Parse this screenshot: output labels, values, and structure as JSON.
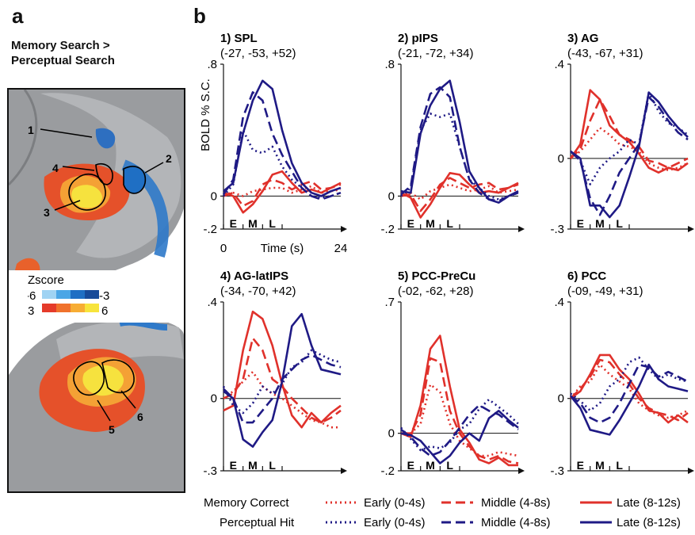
{
  "figure": {
    "panel_a_label": "a",
    "panel_b_label": "b",
    "contrast_line1": "Memory Search >",
    "contrast_line2": "Perceptual Search",
    "zscore": {
      "title": "Zscore",
      "neg_min": "-6",
      "neg_max": "-3",
      "pos_min": "3",
      "pos_max": "6",
      "neg_colors": [
        "#9fd3f3",
        "#4aa6e6",
        "#1f6fc4",
        "#174a99"
      ],
      "pos_colors": [
        "#e53b2a",
        "#f0722c",
        "#f7ad34",
        "#f7e43c"
      ]
    },
    "roi_labels": [
      "1",
      "2",
      "3",
      "4",
      "5",
      "6"
    ],
    "legend": {
      "row1_label": "Memory Correct",
      "row2_label": "Perceptual Hit",
      "early": "Early (0-4s)",
      "middle": "Middle (4-8s)",
      "late": "Late (8-12s)"
    },
    "colors": {
      "memory": "#e0312b",
      "perceptual": "#1f1a85"
    }
  },
  "chart_data": [
    {
      "type": "line",
      "title": "1) SPL",
      "coords": "(-27, -53, +52)",
      "ylabel": "BOLD % S.C.",
      "xlabel": "Time (s)",
      "x_tick_labels": [
        "0",
        "24"
      ],
      "ylim": [
        -0.2,
        0.8
      ],
      "y_tick_labels": [
        ".8",
        "0",
        "-.2"
      ],
      "period_labels": [
        "E",
        "M",
        "L"
      ],
      "x": [
        0,
        2,
        4,
        6,
        8,
        10,
        12,
        14,
        16,
        18,
        20,
        22,
        24
      ],
      "series": [
        {
          "group": "memory",
          "window": "early",
          "values": [
            0.01,
            0.02,
            0.0,
            0.03,
            0.04,
            0.05,
            0.05,
            0.02,
            0.04,
            0.06,
            0.02,
            0.03,
            0.04
          ]
        },
        {
          "group": "memory",
          "window": "middle",
          "values": [
            0.0,
            0.02,
            -0.06,
            -0.03,
            0.07,
            0.1,
            0.08,
            0.04,
            0.07,
            0.09,
            0.04,
            0.05,
            0.07
          ]
        },
        {
          "group": "memory",
          "window": "late",
          "values": [
            0.02,
            0.0,
            -0.1,
            -0.05,
            0.03,
            0.13,
            0.15,
            0.08,
            0.02,
            0.04,
            0.02,
            0.05,
            0.08
          ]
        },
        {
          "group": "perceptual",
          "window": "early",
          "values": [
            0.0,
            0.07,
            0.4,
            0.28,
            0.26,
            0.3,
            0.18,
            0.1,
            0.05,
            0.0,
            -0.01,
            0.0,
            0.02
          ]
        },
        {
          "group": "perceptual",
          "window": "middle",
          "values": [
            0.01,
            0.1,
            0.48,
            0.63,
            0.58,
            0.38,
            0.25,
            0.15,
            0.05,
            0.0,
            -0.02,
            0.0,
            0.02
          ]
        },
        {
          "group": "perceptual",
          "window": "late",
          "values": [
            0.03,
            0.08,
            0.38,
            0.58,
            0.7,
            0.65,
            0.4,
            0.2,
            0.08,
            0.02,
            0.0,
            0.03,
            0.05
          ]
        }
      ]
    },
    {
      "type": "line",
      "title": "2) pIPS",
      "coords": "(-21, -72, +34)",
      "ylim": [
        -0.2,
        0.8
      ],
      "y_tick_labels": [
        ".8",
        "0",
        "-.2"
      ],
      "period_labels": [
        "E",
        "M",
        "L"
      ],
      "x": [
        0,
        2,
        4,
        6,
        8,
        10,
        12,
        14,
        16,
        18,
        20,
        22,
        24
      ],
      "series": [
        {
          "group": "memory",
          "window": "early",
          "values": [
            0.01,
            0.02,
            -0.02,
            0.03,
            0.05,
            0.07,
            0.05,
            0.03,
            0.04,
            0.06,
            0.02,
            0.03,
            0.04
          ]
        },
        {
          "group": "memory",
          "window": "middle",
          "values": [
            0.0,
            0.01,
            -0.09,
            -0.02,
            0.07,
            0.11,
            0.08,
            0.05,
            0.07,
            0.08,
            0.04,
            0.05,
            0.07
          ]
        },
        {
          "group": "memory",
          "window": "late",
          "values": [
            0.02,
            -0.01,
            -0.13,
            -0.05,
            0.05,
            0.14,
            0.13,
            0.07,
            0.02,
            0.03,
            0.02,
            0.05,
            0.08
          ]
        },
        {
          "group": "perceptual",
          "window": "early",
          "values": [
            0.0,
            0.05,
            0.4,
            0.5,
            0.48,
            0.5,
            0.3,
            0.1,
            0.05,
            0.0,
            -0.02,
            0.0,
            0.02
          ]
        },
        {
          "group": "perceptual",
          "window": "middle",
          "values": [
            0.01,
            0.06,
            0.42,
            0.62,
            0.66,
            0.6,
            0.3,
            0.1,
            0.02,
            -0.02,
            -0.03,
            0.0,
            0.02
          ]
        },
        {
          "group": "perceptual",
          "window": "late",
          "values": [
            0.03,
            0.02,
            0.38,
            0.55,
            0.65,
            0.7,
            0.45,
            0.15,
            0.05,
            -0.02,
            -0.04,
            0.0,
            0.03
          ]
        }
      ]
    },
    {
      "type": "line",
      "title": "3) AG",
      "coords": "(-43, -67, +31)",
      "ylim": [
        -0.3,
        0.4
      ],
      "y_tick_labels": [
        ".4",
        "0",
        "-.3"
      ],
      "period_labels": [
        "E",
        "M",
        "L"
      ],
      "x": [
        0,
        2,
        4,
        6,
        8,
        10,
        12,
        14,
        16,
        18,
        20,
        22,
        24
      ],
      "series": [
        {
          "group": "memory",
          "window": "early",
          "values": [
            0.0,
            0.03,
            0.08,
            0.13,
            0.1,
            0.06,
            0.05,
            0.03,
            -0.02,
            -0.04,
            -0.05,
            -0.04,
            -0.02
          ]
        },
        {
          "group": "memory",
          "window": "middle",
          "values": [
            0.0,
            0.04,
            0.16,
            0.25,
            0.18,
            0.1,
            0.08,
            0.05,
            -0.01,
            -0.02,
            -0.04,
            -0.02,
            0.0
          ]
        },
        {
          "group": "memory",
          "window": "late",
          "values": [
            0.0,
            0.06,
            0.29,
            0.25,
            0.14,
            0.1,
            0.07,
            0.02,
            -0.04,
            -0.06,
            -0.04,
            -0.05,
            -0.02
          ]
        },
        {
          "group": "perceptual",
          "window": "early",
          "values": [
            0.03,
            -0.01,
            -0.11,
            -0.04,
            0.0,
            0.03,
            0.08,
            0.06,
            0.28,
            0.2,
            0.15,
            0.13,
            0.1
          ]
        },
        {
          "group": "perceptual",
          "window": "middle",
          "values": [
            0.03,
            -0.01,
            -0.17,
            -0.24,
            -0.16,
            -0.06,
            0.0,
            0.06,
            0.26,
            0.22,
            0.16,
            0.11,
            0.08
          ]
        },
        {
          "group": "perceptual",
          "window": "late",
          "values": [
            0.03,
            0.0,
            -0.2,
            -0.2,
            -0.25,
            -0.2,
            -0.08,
            0.05,
            0.28,
            0.24,
            0.18,
            0.13,
            0.09
          ]
        }
      ]
    },
    {
      "type": "line",
      "title": "4) AG-latIPS",
      "coords": "(-34, -70, +42)",
      "ylim": [
        -0.3,
        0.4
      ],
      "y_tick_labels": [
        ".4",
        "0",
        "-.3"
      ],
      "period_labels": [
        "E",
        "M",
        "L"
      ],
      "x": [
        0,
        2,
        4,
        6,
        8,
        10,
        12,
        14,
        16,
        18,
        20,
        22,
        24
      ],
      "series": [
        {
          "group": "memory",
          "window": "early",
          "values": [
            0.0,
            0.03,
            0.07,
            0.11,
            0.05,
            0.02,
            0.0,
            -0.03,
            -0.06,
            -0.09,
            -0.1,
            -0.12,
            -0.12
          ]
        },
        {
          "group": "memory",
          "window": "middle",
          "values": [
            0.0,
            0.02,
            0.08,
            0.25,
            0.2,
            0.08,
            0.05,
            0.0,
            -0.04,
            -0.08,
            -0.1,
            -0.08,
            -0.05
          ]
        },
        {
          "group": "memory",
          "window": "late",
          "values": [
            -0.05,
            -0.03,
            0.2,
            0.36,
            0.33,
            0.22,
            0.06,
            -0.07,
            -0.12,
            -0.06,
            -0.1,
            -0.06,
            -0.03
          ]
        },
        {
          "group": "perceptual",
          "window": "early",
          "values": [
            0.05,
            -0.03,
            -0.06,
            -0.02,
            0.05,
            0.02,
            0.06,
            0.13,
            0.15,
            0.2,
            0.18,
            0.16,
            0.15
          ]
        },
        {
          "group": "perceptual",
          "window": "middle",
          "values": [
            0.04,
            0.0,
            -0.1,
            -0.1,
            -0.05,
            0.0,
            0.08,
            0.12,
            0.16,
            0.18,
            0.16,
            0.14,
            0.13
          ]
        },
        {
          "group": "perceptual",
          "window": "late",
          "values": [
            0.03,
            0.0,
            -0.17,
            -0.2,
            -0.14,
            -0.09,
            0.07,
            0.3,
            0.35,
            0.22,
            0.12,
            0.11,
            0.1
          ]
        }
      ]
    },
    {
      "type": "line",
      "title": "5) PCC-PreCu",
      "coords": "(-02, -62, +28)",
      "ylim": [
        -0.2,
        0.7
      ],
      "y_tick_labels": [
        ".7",
        "0",
        "-.2"
      ],
      "period_labels": [
        "E",
        "M",
        "L"
      ],
      "x": [
        0,
        2,
        4,
        6,
        8,
        10,
        12,
        14,
        16,
        18,
        20,
        22,
        24
      ],
      "series": [
        {
          "group": "memory",
          "window": "early",
          "values": [
            0.0,
            0.0,
            0.05,
            0.26,
            0.22,
            0.05,
            -0.04,
            -0.08,
            -0.12,
            -0.12,
            -0.1,
            -0.11,
            -0.12
          ]
        },
        {
          "group": "memory",
          "window": "middle",
          "values": [
            0.0,
            0.0,
            0.1,
            0.4,
            0.38,
            0.12,
            0.0,
            -0.07,
            -0.12,
            -0.14,
            -0.12,
            -0.15,
            -0.16
          ]
        },
        {
          "group": "memory",
          "window": "late",
          "values": [
            0.0,
            -0.02,
            0.15,
            0.45,
            0.52,
            0.25,
            0.02,
            -0.05,
            -0.14,
            -0.16,
            -0.13,
            -0.17,
            -0.17
          ]
        },
        {
          "group": "perceptual",
          "window": "early",
          "values": [
            0.03,
            -0.03,
            -0.09,
            -0.07,
            -0.08,
            -0.05,
            0.02,
            0.05,
            0.13,
            0.18,
            0.14,
            0.1,
            0.05
          ]
        },
        {
          "group": "perceptual",
          "window": "middle",
          "values": [
            0.02,
            -0.02,
            -0.08,
            -0.12,
            -0.1,
            -0.04,
            0.03,
            0.1,
            0.15,
            0.12,
            0.1,
            0.06,
            0.02
          ]
        },
        {
          "group": "perceptual",
          "window": "late",
          "values": [
            0.0,
            -0.01,
            -0.04,
            -0.1,
            -0.16,
            -0.12,
            -0.05,
            0.0,
            -0.04,
            0.08,
            0.12,
            0.07,
            0.03
          ]
        }
      ]
    },
    {
      "type": "line",
      "title": "6) PCC",
      "coords": "(-09, -49, +31)",
      "ylim": [
        -0.3,
        0.4
      ],
      "y_tick_labels": [
        ".4",
        "0",
        "-.3"
      ],
      "period_labels": [
        "E",
        "M",
        "L"
      ],
      "x": [
        0,
        2,
        4,
        6,
        8,
        10,
        12,
        14,
        16,
        18,
        20,
        22,
        24
      ],
      "series": [
        {
          "group": "memory",
          "window": "early",
          "values": [
            0.0,
            0.05,
            0.07,
            0.14,
            0.1,
            0.07,
            0.04,
            -0.02,
            -0.05,
            -0.07,
            -0.08,
            -0.07,
            -0.05
          ]
        },
        {
          "group": "memory",
          "window": "middle",
          "values": [
            0.0,
            0.04,
            0.09,
            0.16,
            0.15,
            0.1,
            0.06,
            0.0,
            -0.04,
            -0.06,
            -0.07,
            -0.09,
            -0.06
          ]
        },
        {
          "group": "memory",
          "window": "late",
          "values": [
            0.0,
            0.03,
            0.1,
            0.18,
            0.18,
            0.12,
            0.08,
            0.02,
            -0.05,
            -0.06,
            -0.1,
            -0.07,
            -0.1
          ]
        },
        {
          "group": "perceptual",
          "window": "early",
          "values": [
            0.02,
            -0.01,
            -0.05,
            -0.02,
            0.05,
            0.08,
            0.15,
            0.17,
            0.12,
            0.08,
            0.1,
            0.08,
            0.07
          ]
        },
        {
          "group": "perceptual",
          "window": "middle",
          "values": [
            0.01,
            -0.02,
            -0.08,
            -0.1,
            -0.08,
            -0.02,
            0.06,
            0.14,
            0.13,
            0.09,
            0.11,
            0.09,
            0.07
          ]
        },
        {
          "group": "perceptual",
          "window": "late",
          "values": [
            0.01,
            -0.04,
            -0.13,
            -0.14,
            -0.15,
            -0.09,
            -0.02,
            0.05,
            0.14,
            0.08,
            0.05,
            0.04,
            0.03
          ]
        }
      ]
    }
  ]
}
